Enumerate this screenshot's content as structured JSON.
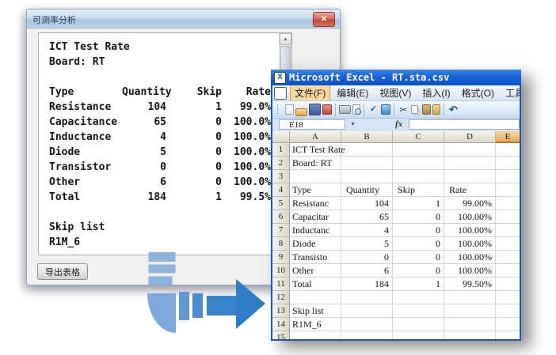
{
  "dialog": {
    "title": "可测率分析",
    "close_icon": "✕",
    "report": {
      "title_line": "ICT Test Rate",
      "board_line": "Board: RT",
      "table": {
        "headers": [
          "Type",
          "Quantity",
          "Skip",
          "Rate"
        ],
        "rows": [
          [
            "Resistance",
            "104",
            "1",
            "99.0%"
          ],
          [
            "Capacitance",
            "65",
            "0",
            "100.0%"
          ],
          [
            "Inductance",
            "4",
            "0",
            "100.0%"
          ],
          [
            "Diode",
            "5",
            "0",
            "100.0%"
          ],
          [
            "Transistor",
            "0",
            "0",
            "100.0%"
          ],
          [
            "Other",
            "6",
            "0",
            "100.0%"
          ],
          [
            "Total",
            "184",
            "1",
            "99.5%"
          ]
        ]
      },
      "skip_title": "Skip list",
      "skip_items": [
        "R1M_6"
      ]
    },
    "scrollbar": {
      "up_icon": "▲",
      "down_icon": "▼"
    },
    "export_button": "导出表格"
  },
  "excel": {
    "title": "Microsoft Excel - RT.sta.csv",
    "app_icon_letter": "X",
    "menus": [
      "文件(F)",
      "编辑(E)",
      "视图(V)",
      "插入(I)",
      "格式(O)",
      "工具(T)"
    ],
    "active_menu_index": 0,
    "toolbar_icons": [
      "new",
      "open",
      "save",
      "permission",
      "sep",
      "print",
      "print-preview",
      "sep",
      "spelling",
      "research",
      "sep",
      "cut",
      "copy",
      "paste",
      "format-painter",
      "sep",
      "undo"
    ],
    "name_box": "E18",
    "formula_fx": "fx",
    "namebox_dropdown_icon": "▼",
    "columns": [
      "A",
      "B",
      "C",
      "D",
      "E"
    ],
    "selected_column": "E",
    "header_align_left_row": 4,
    "rows": [
      {
        "n": "1",
        "cells": [
          "ICT Test Rate",
          "",
          "",
          ""
        ]
      },
      {
        "n": "2",
        "cells": [
          "Board: RT",
          "",
          "",
          ""
        ]
      },
      {
        "n": "3",
        "cells": [
          "",
          "",
          "",
          ""
        ]
      },
      {
        "n": "4",
        "cells": [
          "Type",
          "Quantity",
          "Skip",
          "Rate"
        ]
      },
      {
        "n": "5",
        "cells": [
          "Resistanc",
          "104",
          "1",
          "99.00%"
        ]
      },
      {
        "n": "6",
        "cells": [
          "Capacitar",
          "65",
          "0",
          "100.00%"
        ]
      },
      {
        "n": "7",
        "cells": [
          "Inductanc",
          "4",
          "0",
          "100.00%"
        ]
      },
      {
        "n": "8",
        "cells": [
          "Diode",
          "5",
          "0",
          "100.00%"
        ]
      },
      {
        "n": "9",
        "cells": [
          "Transisto",
          "0",
          "0",
          "100.00%"
        ]
      },
      {
        "n": "10",
        "cells": [
          "Other",
          "6",
          "0",
          "100.00%"
        ]
      },
      {
        "n": "11",
        "cells": [
          "Total",
          "184",
          "1",
          "99.50%"
        ]
      },
      {
        "n": "12",
        "cells": [
          "",
          "",
          "",
          ""
        ]
      },
      {
        "n": "13",
        "cells": [
          "Skip list",
          "",
          "",
          ""
        ]
      },
      {
        "n": "14",
        "cells": [
          "R1M_6",
          "",
          "",
          ""
        ]
      },
      {
        "n": "15",
        "cells": [
          "",
          "",
          "",
          ""
        ]
      }
    ]
  },
  "colors": {
    "arrow_bars": "#8fb2e0",
    "arrow_disc": "#7ca9db",
    "arrow_seg1": "#6297d2",
    "arrow_seg2": "#4c8bcd",
    "arrow_shaft": "#3982c9",
    "arrow_head": "#2d7cc4",
    "excel_titlebar_blue": "#1a63d8",
    "menu_highlight_tan": "#fbd7a1",
    "selected_column_orange": "#f7c278",
    "close_button_red": "#c04a38"
  }
}
